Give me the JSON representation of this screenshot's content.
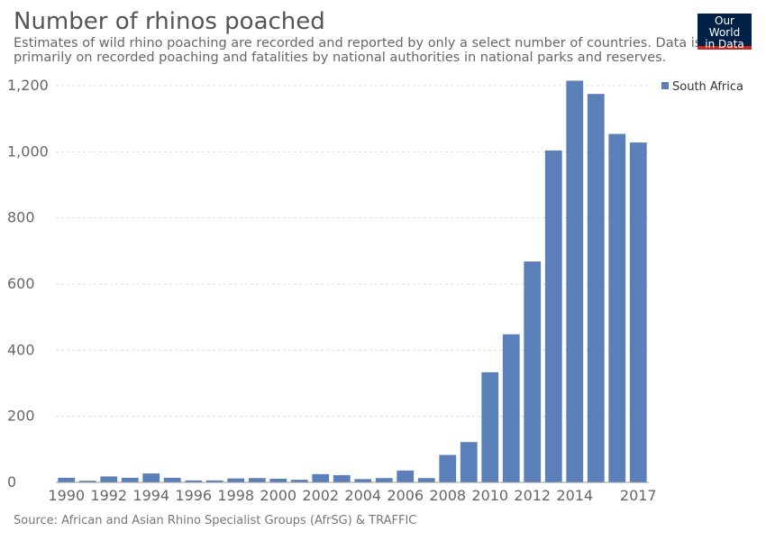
{
  "header": {
    "title": "Number of rhinos poached",
    "subtitle": "Estimates of wild rhino poaching are recorded and reported by only a select number of countries. Data is based primarily on recorded poaching and fatalities by national authorities in national parks and reserves."
  },
  "logo": {
    "line1": "Our World",
    "line2": "in Data"
  },
  "footer": {
    "source": "Source: African and Asian Rhino Specialist Groups (AfrSG) & TRAFFIC"
  },
  "colors": {
    "bar": "#5b7fb9",
    "grid": "#dddddd",
    "axis_text": "#666666",
    "logo_bg": "#002147",
    "logo_accent": "#ce261e"
  },
  "chart_data": {
    "type": "bar",
    "title": "Number of rhinos poached",
    "xlabel": "",
    "ylabel": "",
    "ylim": [
      0,
      1200
    ],
    "yticks": [
      0,
      200,
      400,
      600,
      800,
      1000,
      1200
    ],
    "ytick_labels": [
      "0",
      "200",
      "400",
      "600",
      "800",
      "1,000",
      "1,200"
    ],
    "xtick_labels": [
      "1990",
      "1992",
      "1994",
      "1996",
      "1998",
      "2000",
      "2002",
      "2004",
      "2006",
      "2008",
      "2010",
      "2012",
      "2014",
      "2017"
    ],
    "grid": true,
    "legend": "top-right",
    "categories": [
      "1990",
      "1991",
      "1992",
      "1993",
      "1994",
      "1995",
      "1996",
      "1997",
      "1998",
      "1999",
      "2000",
      "2001",
      "2002",
      "2003",
      "2004",
      "2005",
      "2006",
      "2007",
      "2008",
      "2009",
      "2010",
      "2011",
      "2012",
      "2013",
      "2014",
      "2015",
      "2016",
      "2017"
    ],
    "series": [
      {
        "name": "South Africa",
        "values": [
          14,
          5,
          18,
          14,
          27,
          14,
          6,
          6,
          12,
          13,
          11,
          8,
          25,
          22,
          10,
          13,
          36,
          13,
          83,
          122,
          333,
          448,
          668,
          1004,
          1215,
          1175,
          1054,
          1028
        ]
      }
    ]
  }
}
